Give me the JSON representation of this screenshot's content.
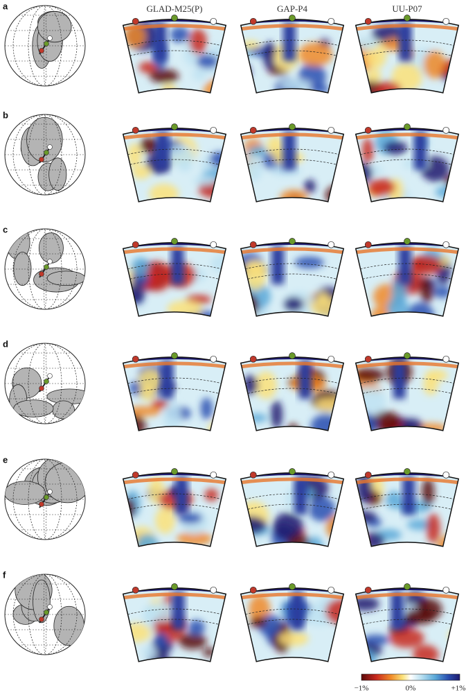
{
  "columns": [
    "GLAD-M25(P)",
    "GAP-P4",
    "UU-P07"
  ],
  "rows": [
    {
      "label": "a"
    },
    {
      "label": "b"
    },
    {
      "label": "c"
    },
    {
      "label": "d"
    },
    {
      "label": "e"
    },
    {
      "label": "f"
    }
  ],
  "colorbar": {
    "labels": [
      "−1%",
      "0%",
      "+1%"
    ]
  }
}
